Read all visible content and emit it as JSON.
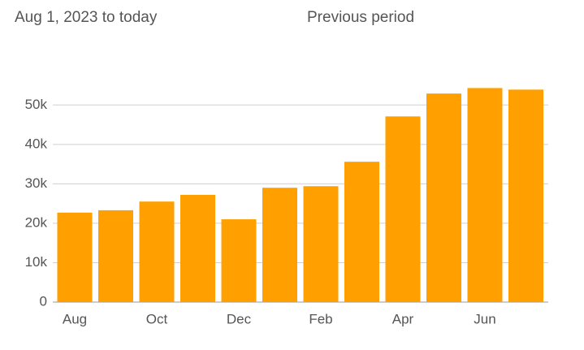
{
  "chart_data": {
    "type": "bar",
    "subtitle": "Aug 1, 2023 to today",
    "comparison_label": "Previous period",
    "categories": [
      "Aug",
      null,
      "Oct",
      null,
      "Dec",
      null,
      "Feb",
      null,
      "Apr",
      null,
      "Jun",
      null
    ],
    "values": [
      22700,
      23300,
      25500,
      27200,
      21000,
      29000,
      29400,
      35600,
      47100,
      52900,
      54300,
      53900
    ],
    "color": "#ff9f00",
    "ylim": [
      0,
      55000
    ],
    "yticks": [
      {
        "value": 0,
        "label": "0"
      },
      {
        "value": 10000,
        "label": "10k"
      },
      {
        "value": 20000,
        "label": "20k"
      },
      {
        "value": 30000,
        "label": "30k"
      },
      {
        "value": 40000,
        "label": "40k"
      },
      {
        "value": 50000,
        "label": "50k"
      }
    ],
    "grid": true
  }
}
